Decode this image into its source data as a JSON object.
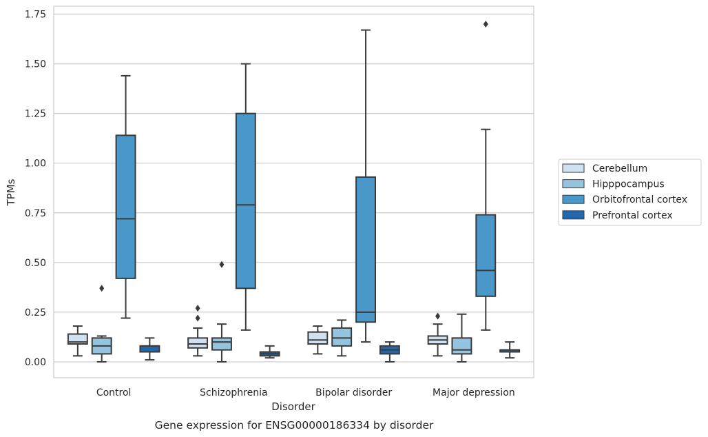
{
  "chart_data": {
    "type": "box",
    "title": "",
    "caption": "Gene expression for ENSG00000186334 by disorder",
    "xlabel": "Disorder",
    "ylabel": "TPMs",
    "ylim": [
      -0.08,
      1.79
    ],
    "yticks": [
      "0.00",
      "0.25",
      "0.50",
      "0.75",
      "1.00",
      "1.25",
      "1.50",
      "1.75"
    ],
    "grid": "horizontal",
    "legend_position": "right",
    "categories": [
      "Control",
      "Schizophrenia",
      "Bipolar disorder",
      "Major depression"
    ],
    "series": [
      {
        "name": "Cerebellum",
        "color": "#d0e1f2",
        "boxes": [
          {
            "whislo": 0.03,
            "q1": 0.09,
            "med": 0.1,
            "q3": 0.14,
            "whishi": 0.18,
            "fliers": []
          },
          {
            "whislo": 0.03,
            "q1": 0.07,
            "med": 0.09,
            "q3": 0.12,
            "whishi": 0.17,
            "fliers": [
              0.22,
              0.27
            ]
          },
          {
            "whislo": 0.04,
            "q1": 0.09,
            "med": 0.11,
            "q3": 0.15,
            "whishi": 0.18,
            "fliers": []
          },
          {
            "whislo": 0.03,
            "q1": 0.09,
            "med": 0.11,
            "q3": 0.13,
            "whishi": 0.19,
            "fliers": [
              0.23
            ]
          }
        ]
      },
      {
        "name": "Hipppocampus",
        "color": "#94c4df",
        "boxes": [
          {
            "whislo": 0.0,
            "q1": 0.04,
            "med": 0.08,
            "q3": 0.12,
            "whishi": 0.13,
            "fliers": [
              0.37
            ]
          },
          {
            "whislo": 0.0,
            "q1": 0.06,
            "med": 0.1,
            "q3": 0.12,
            "whishi": 0.19,
            "fliers": [
              0.49
            ]
          },
          {
            "whislo": 0.03,
            "q1": 0.08,
            "med": 0.12,
            "q3": 0.17,
            "whishi": 0.21,
            "fliers": []
          },
          {
            "whislo": 0.0,
            "q1": 0.04,
            "med": 0.06,
            "q3": 0.12,
            "whishi": 0.24,
            "fliers": []
          }
        ]
      },
      {
        "name": "Orbitofrontal cortex",
        "color": "#4a98c9",
        "boxes": [
          {
            "whislo": 0.22,
            "q1": 0.42,
            "med": 0.72,
            "q3": 1.14,
            "whishi": 1.44,
            "fliers": []
          },
          {
            "whislo": 0.16,
            "q1": 0.37,
            "med": 0.79,
            "q3": 1.25,
            "whishi": 1.5,
            "fliers": []
          },
          {
            "whislo": 0.1,
            "q1": 0.2,
            "med": 0.25,
            "q3": 0.93,
            "whishi": 1.67,
            "fliers": []
          },
          {
            "whislo": 0.16,
            "q1": 0.33,
            "med": 0.46,
            "q3": 0.74,
            "whishi": 1.17,
            "fliers": [
              1.7
            ]
          }
        ]
      },
      {
        "name": "Prefrontal cortex",
        "color": "#2366ac",
        "boxes": [
          {
            "whislo": 0.01,
            "q1": 0.05,
            "med": 0.08,
            "q3": 0.08,
            "whishi": 0.12,
            "fliers": []
          },
          {
            "whislo": 0.02,
            "q1": 0.03,
            "med": 0.04,
            "q3": 0.05,
            "whishi": 0.08,
            "fliers": []
          },
          {
            "whislo": 0.0,
            "q1": 0.04,
            "med": 0.06,
            "q3": 0.08,
            "whishi": 0.1,
            "fliers": []
          },
          {
            "whislo": 0.02,
            "q1": 0.05,
            "med": 0.06,
            "q3": 0.06,
            "whishi": 0.1,
            "fliers": []
          }
        ]
      }
    ]
  }
}
